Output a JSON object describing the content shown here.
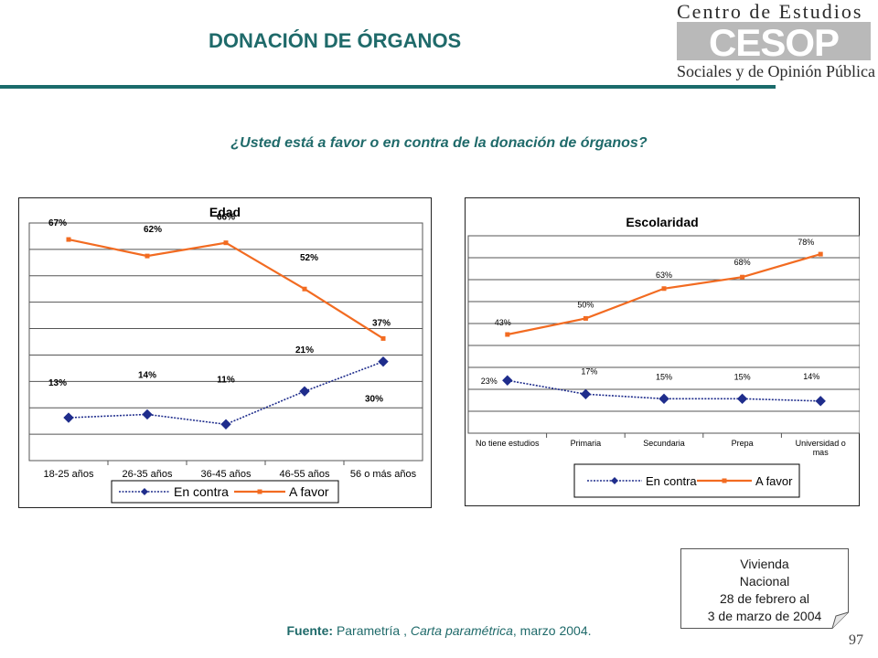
{
  "header": {
    "title": "DONACIÓN DE ÓRGANOS",
    "logo_line1": "Centro de Estudios",
    "logo_mark": "CESOP",
    "logo_line3": "Sociales y de Opinión Pública"
  },
  "question": "¿Usted está a favor o en contra de la donación de órganos?",
  "colors": {
    "favor": "#f26b21",
    "contra": "#1f2d8c",
    "accent": "#1f6a6a"
  },
  "chart_data": [
    {
      "type": "line",
      "title": "Edad",
      "categories": [
        "18-25 años",
        "26-35 años",
        "36-45 años",
        "46-55 años",
        "56 o más años"
      ],
      "series": [
        {
          "name": "En contra",
          "values": [
            13,
            14,
            11,
            21,
            30
          ],
          "labels": [
            "13%",
            "14%",
            "11%",
            "21%",
            "30%"
          ]
        },
        {
          "name": "A favor",
          "values": [
            67,
            62,
            66,
            52,
            37
          ],
          "labels": [
            "67%",
            "62%",
            "66%",
            "52%",
            "37%"
          ]
        }
      ],
      "legend": "bottom",
      "grid": true
    },
    {
      "type": "line",
      "title": "Escolaridad",
      "categories": [
        "No tiene estudios",
        "Primaria",
        "Secundaria",
        "Prepa",
        "Universidad o mas"
      ],
      "series": [
        {
          "name": "En contra",
          "values": [
            23,
            17,
            15,
            15,
            14
          ],
          "labels": [
            "23%",
            "17%",
            "15%",
            "15%",
            "14%"
          ]
        },
        {
          "name": "A favor",
          "values": [
            43,
            50,
            63,
            68,
            78
          ],
          "labels": [
            "43%",
            "50%",
            "63%",
            "68%",
            "78%"
          ]
        }
      ],
      "legend": "bottom",
      "grid": true
    }
  ],
  "note": {
    "line1": "Vivienda",
    "line2": "Nacional",
    "line3": "28 de febrero al",
    "line4": "3 de marzo de 2004"
  },
  "source": {
    "label": "Fuente:",
    "org": "Parametría",
    "pub": "Carta paramétrica",
    "date": ", marzo 2004."
  },
  "page_number": "97"
}
